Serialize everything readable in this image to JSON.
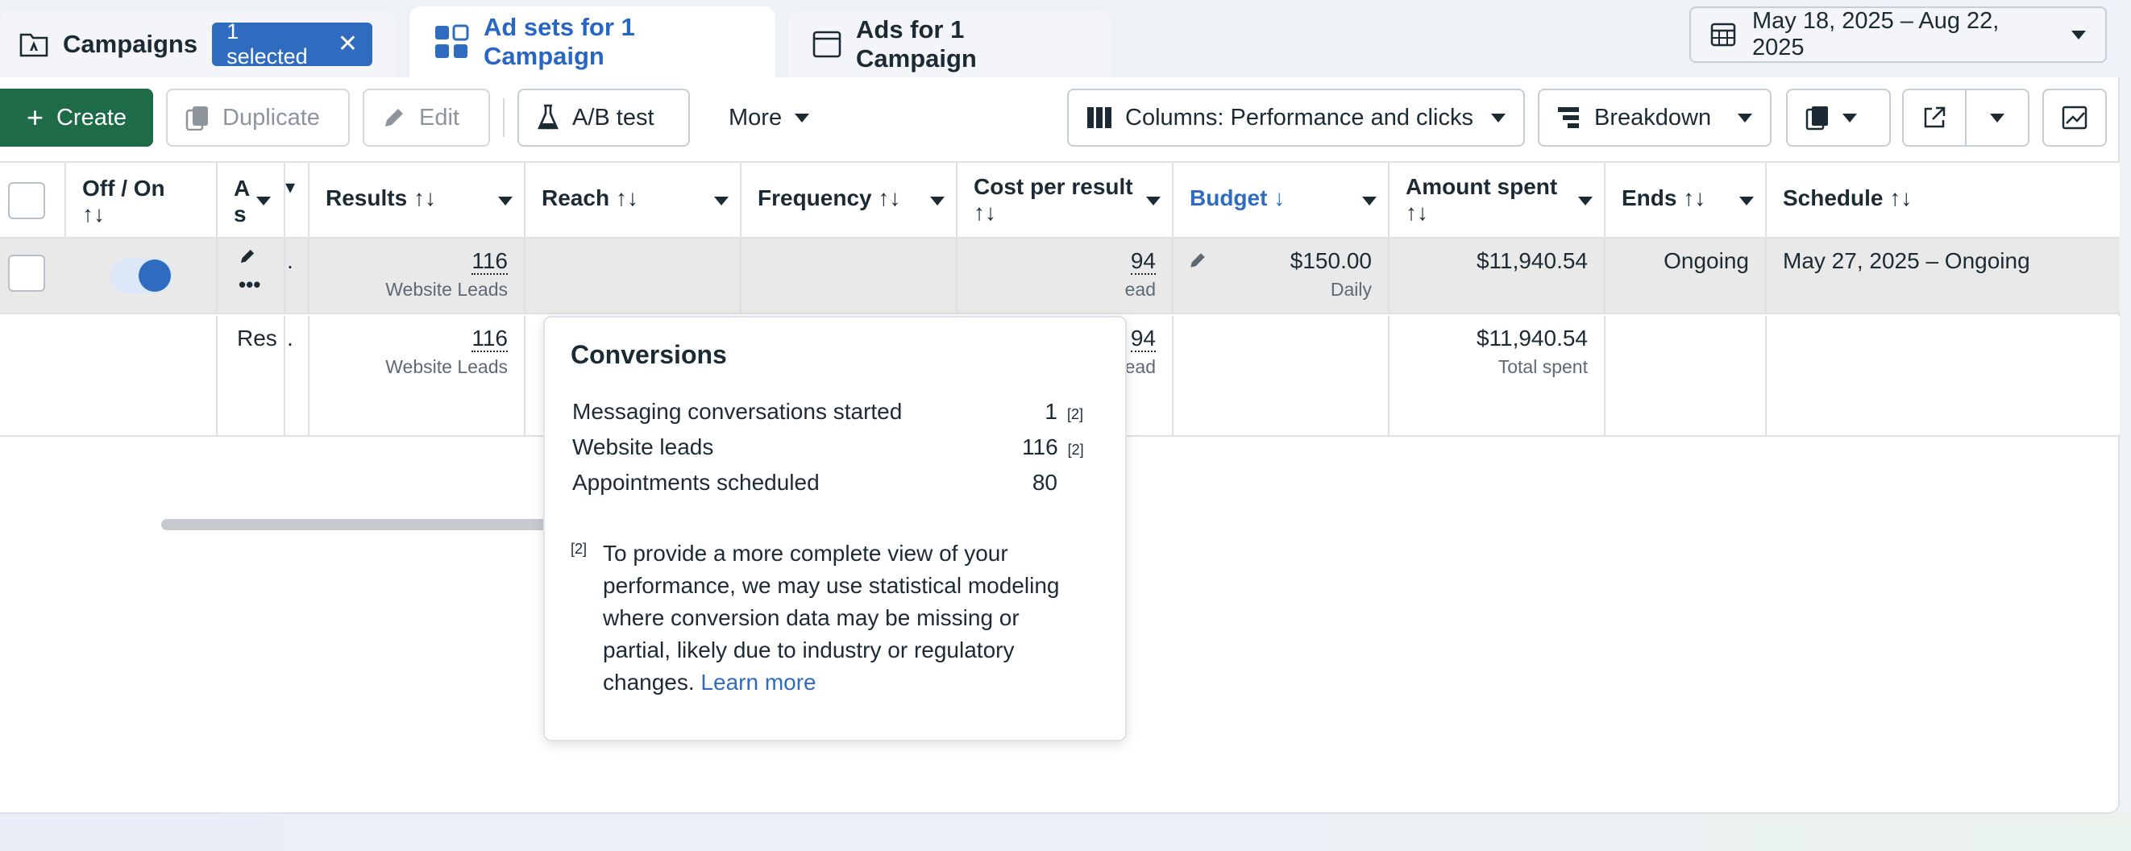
{
  "tabs": {
    "campaigns": "Campaigns",
    "selected_chip": "1 selected",
    "adsets": "Ad sets for 1 Campaign",
    "ads": "Ads for 1 Campaign"
  },
  "date_range": "May 18, 2025 – Aug 22, 2025",
  "toolbar": {
    "create": "Create",
    "duplicate": "Duplicate",
    "edit": "Edit",
    "ab_test": "A/B test",
    "more": "More",
    "columns": "Columns: Performance and clicks",
    "breakdown": "Breakdown"
  },
  "table": {
    "headers": {
      "off_on": "Off / On",
      "adset_truncated_1": "A",
      "adset_truncated_2": "s",
      "results": "Results",
      "reach": "Reach",
      "frequency": "Frequency",
      "cost_per_result": "Cost per result",
      "budget": "Budget",
      "amount_spent": "Amount spent",
      "ends": "Ends",
      "schedule": "Schedule",
      "sort_icon": "↑↓",
      "sort_down": "↓"
    },
    "row1": {
      "results": "116",
      "results_sub": "Website Leads",
      "cost_partial": "94",
      "cost_sub_partial": "ead",
      "budget": "$150.00",
      "budget_sub": "Daily",
      "amount_spent": "$11,940.54",
      "ends": "Ongoing",
      "schedule": "May 27, 2025 – Ongoing"
    },
    "row2": {
      "label": "Res",
      "results": "116",
      "results_sub": "Website Leads",
      "cost_partial": "94",
      "cost_sub_partial": "ead",
      "amount_spent": "$11,940.54",
      "amount_spent_sub": "Total spent"
    }
  },
  "popover": {
    "title": "Conversions",
    "rows": [
      {
        "label": "Messaging conversations started",
        "value": "1",
        "footnote": "[2]"
      },
      {
        "label": "Website leads",
        "value": "116",
        "footnote": "[2]"
      },
      {
        "label": "Appointments scheduled",
        "value": "80",
        "footnote": ""
      }
    ],
    "note_marker": "[2]",
    "note": "To provide a more complete view of your performance, we may use statistical modeling where conversion data may be missing or partial, likely due to industry or regulatory changes.",
    "learn_more": "Learn more"
  },
  "colors": {
    "accent_blue": "#2f6cbf",
    "create_green": "#1e6b47"
  }
}
